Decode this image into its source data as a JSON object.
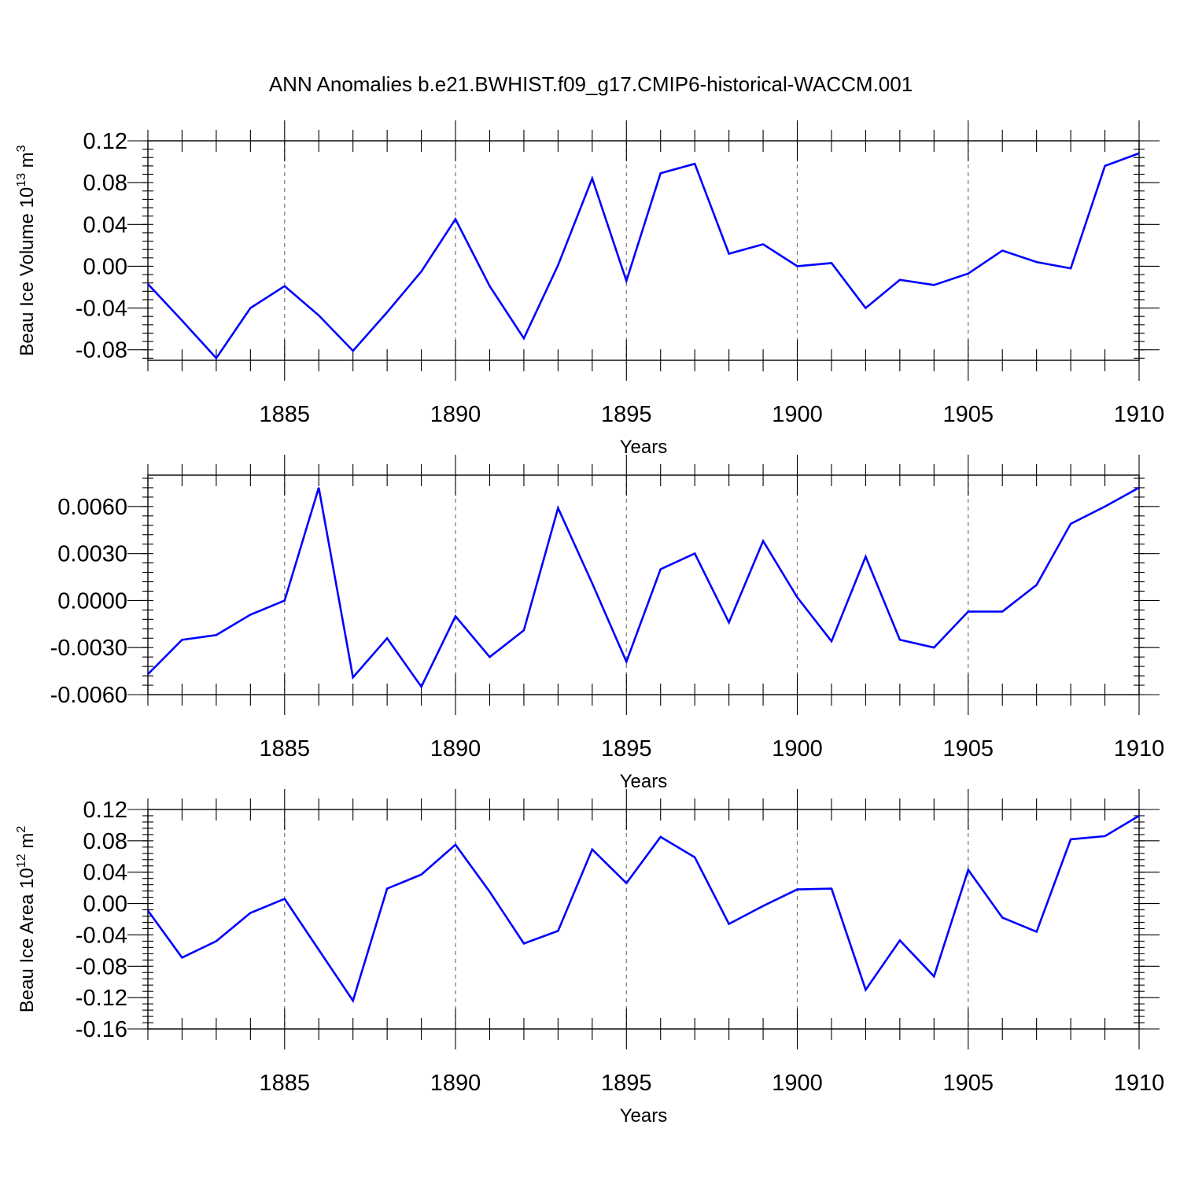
{
  "figure_title": "ANN Anomalies b.e21.BWHIST.f09_g17.CMIP6-historical-WACCM.001",
  "series_color": "#0000ff",
  "chart_data": [
    {
      "type": "line",
      "xlabel": "Years",
      "ylabel_base": "Beau Ice Volume 10",
      "ylabel_exp": "13",
      "ylabel_unit": "m",
      "ylabel_unit_exp": "3",
      "xlim": [
        1881,
        1910
      ],
      "ylim": [
        -0.09,
        0.12
      ],
      "xticks": [
        1885,
        1890,
        1895,
        1900,
        1905,
        1910
      ],
      "yticks": [
        -0.08,
        -0.04,
        0.0,
        0.04,
        0.08,
        0.12
      ],
      "ytick_labels": [
        "-0.08",
        "-0.04",
        "0.00",
        "0.04",
        "0.08",
        "0.12"
      ],
      "yminor_step": 0.008,
      "grid": "vertical dashed at labeled years",
      "x": [
        1881,
        1882,
        1883,
        1884,
        1885,
        1886,
        1887,
        1888,
        1889,
        1890,
        1891,
        1892,
        1893,
        1894,
        1895,
        1896,
        1897,
        1898,
        1899,
        1900,
        1901,
        1902,
        1903,
        1904,
        1905,
        1906,
        1907,
        1908,
        1909,
        1910
      ],
      "y": [
        -0.017,
        -0.052,
        -0.088,
        -0.04,
        -0.019,
        -0.047,
        -0.081,
        -0.044,
        -0.005,
        0.045,
        -0.019,
        -0.069,
        0.001,
        0.084,
        -0.014,
        0.089,
        0.098,
        0.012,
        0.021,
        0.0,
        0.003,
        -0.04,
        -0.013,
        -0.018,
        -0.007,
        0.015,
        0.004,
        -0.002,
        0.096,
        0.108
      ]
    },
    {
      "type": "line",
      "xlabel": "Years",
      "xlim": [
        1881,
        1910
      ],
      "ylim": [
        -0.006,
        0.008
      ],
      "xticks": [
        1885,
        1890,
        1895,
        1900,
        1905,
        1910
      ],
      "yticks": [
        -0.006,
        -0.003,
        0.0,
        0.003,
        0.006
      ],
      "ytick_labels": [
        "-0.0060",
        "-0.0030",
        "0.0000",
        "0.0030",
        "0.0060"
      ],
      "yminor_step": 0.0006,
      "grid": "vertical dashed at labeled years",
      "x": [
        1881,
        1882,
        1883,
        1884,
        1885,
        1886,
        1887,
        1888,
        1889,
        1890,
        1891,
        1892,
        1893,
        1894,
        1895,
        1896,
        1897,
        1898,
        1899,
        1900,
        1901,
        1902,
        1903,
        1904,
        1905,
        1906,
        1907,
        1908,
        1909,
        1910
      ],
      "y": [
        -0.0047,
        -0.0025,
        -0.0022,
        -0.0009,
        0.0,
        0.0072,
        -0.0049,
        -0.0024,
        -0.0055,
        -0.001,
        -0.0036,
        -0.0019,
        0.0059,
        0.0011,
        -0.0039,
        0.002,
        0.003,
        -0.0014,
        0.0038,
        0.0002,
        -0.0026,
        0.0028,
        -0.0025,
        -0.003,
        -0.0007,
        -0.0007,
        0.001,
        0.0049,
        0.006,
        0.0072
      ]
    },
    {
      "type": "line",
      "xlabel": "Years",
      "ylabel_base": "Beau Ice Area 10",
      "ylabel_exp": "12",
      "ylabel_unit": "m",
      "ylabel_unit_exp": "2",
      "xlim": [
        1881,
        1910
      ],
      "ylim": [
        -0.16,
        0.12
      ],
      "xticks": [
        1885,
        1890,
        1895,
        1900,
        1905,
        1910
      ],
      "yticks": [
        -0.16,
        -0.12,
        -0.08,
        -0.04,
        0.0,
        0.04,
        0.08,
        0.12
      ],
      "ytick_labels": [
        "-0.16",
        "-0.12",
        "-0.08",
        "-0.04",
        "0.00",
        "0.04",
        "0.08",
        "0.12"
      ],
      "yminor_step": 0.008,
      "grid": "vertical dashed at labeled years",
      "x": [
        1881,
        1882,
        1883,
        1884,
        1885,
        1886,
        1887,
        1888,
        1889,
        1890,
        1891,
        1892,
        1893,
        1894,
        1895,
        1896,
        1897,
        1898,
        1899,
        1900,
        1901,
        1902,
        1903,
        1904,
        1905,
        1906,
        1907,
        1908,
        1909,
        1910
      ],
      "y": [
        -0.009,
        -0.069,
        -0.048,
        -0.012,
        0.006,
        -0.059,
        -0.124,
        0.019,
        0.037,
        0.075,
        0.015,
        -0.051,
        -0.035,
        0.069,
        0.026,
        0.085,
        0.059,
        -0.026,
        -0.003,
        0.018,
        0.019,
        -0.11,
        -0.047,
        -0.093,
        0.043,
        -0.018,
        -0.036,
        0.082,
        0.086,
        0.112
      ]
    }
  ]
}
